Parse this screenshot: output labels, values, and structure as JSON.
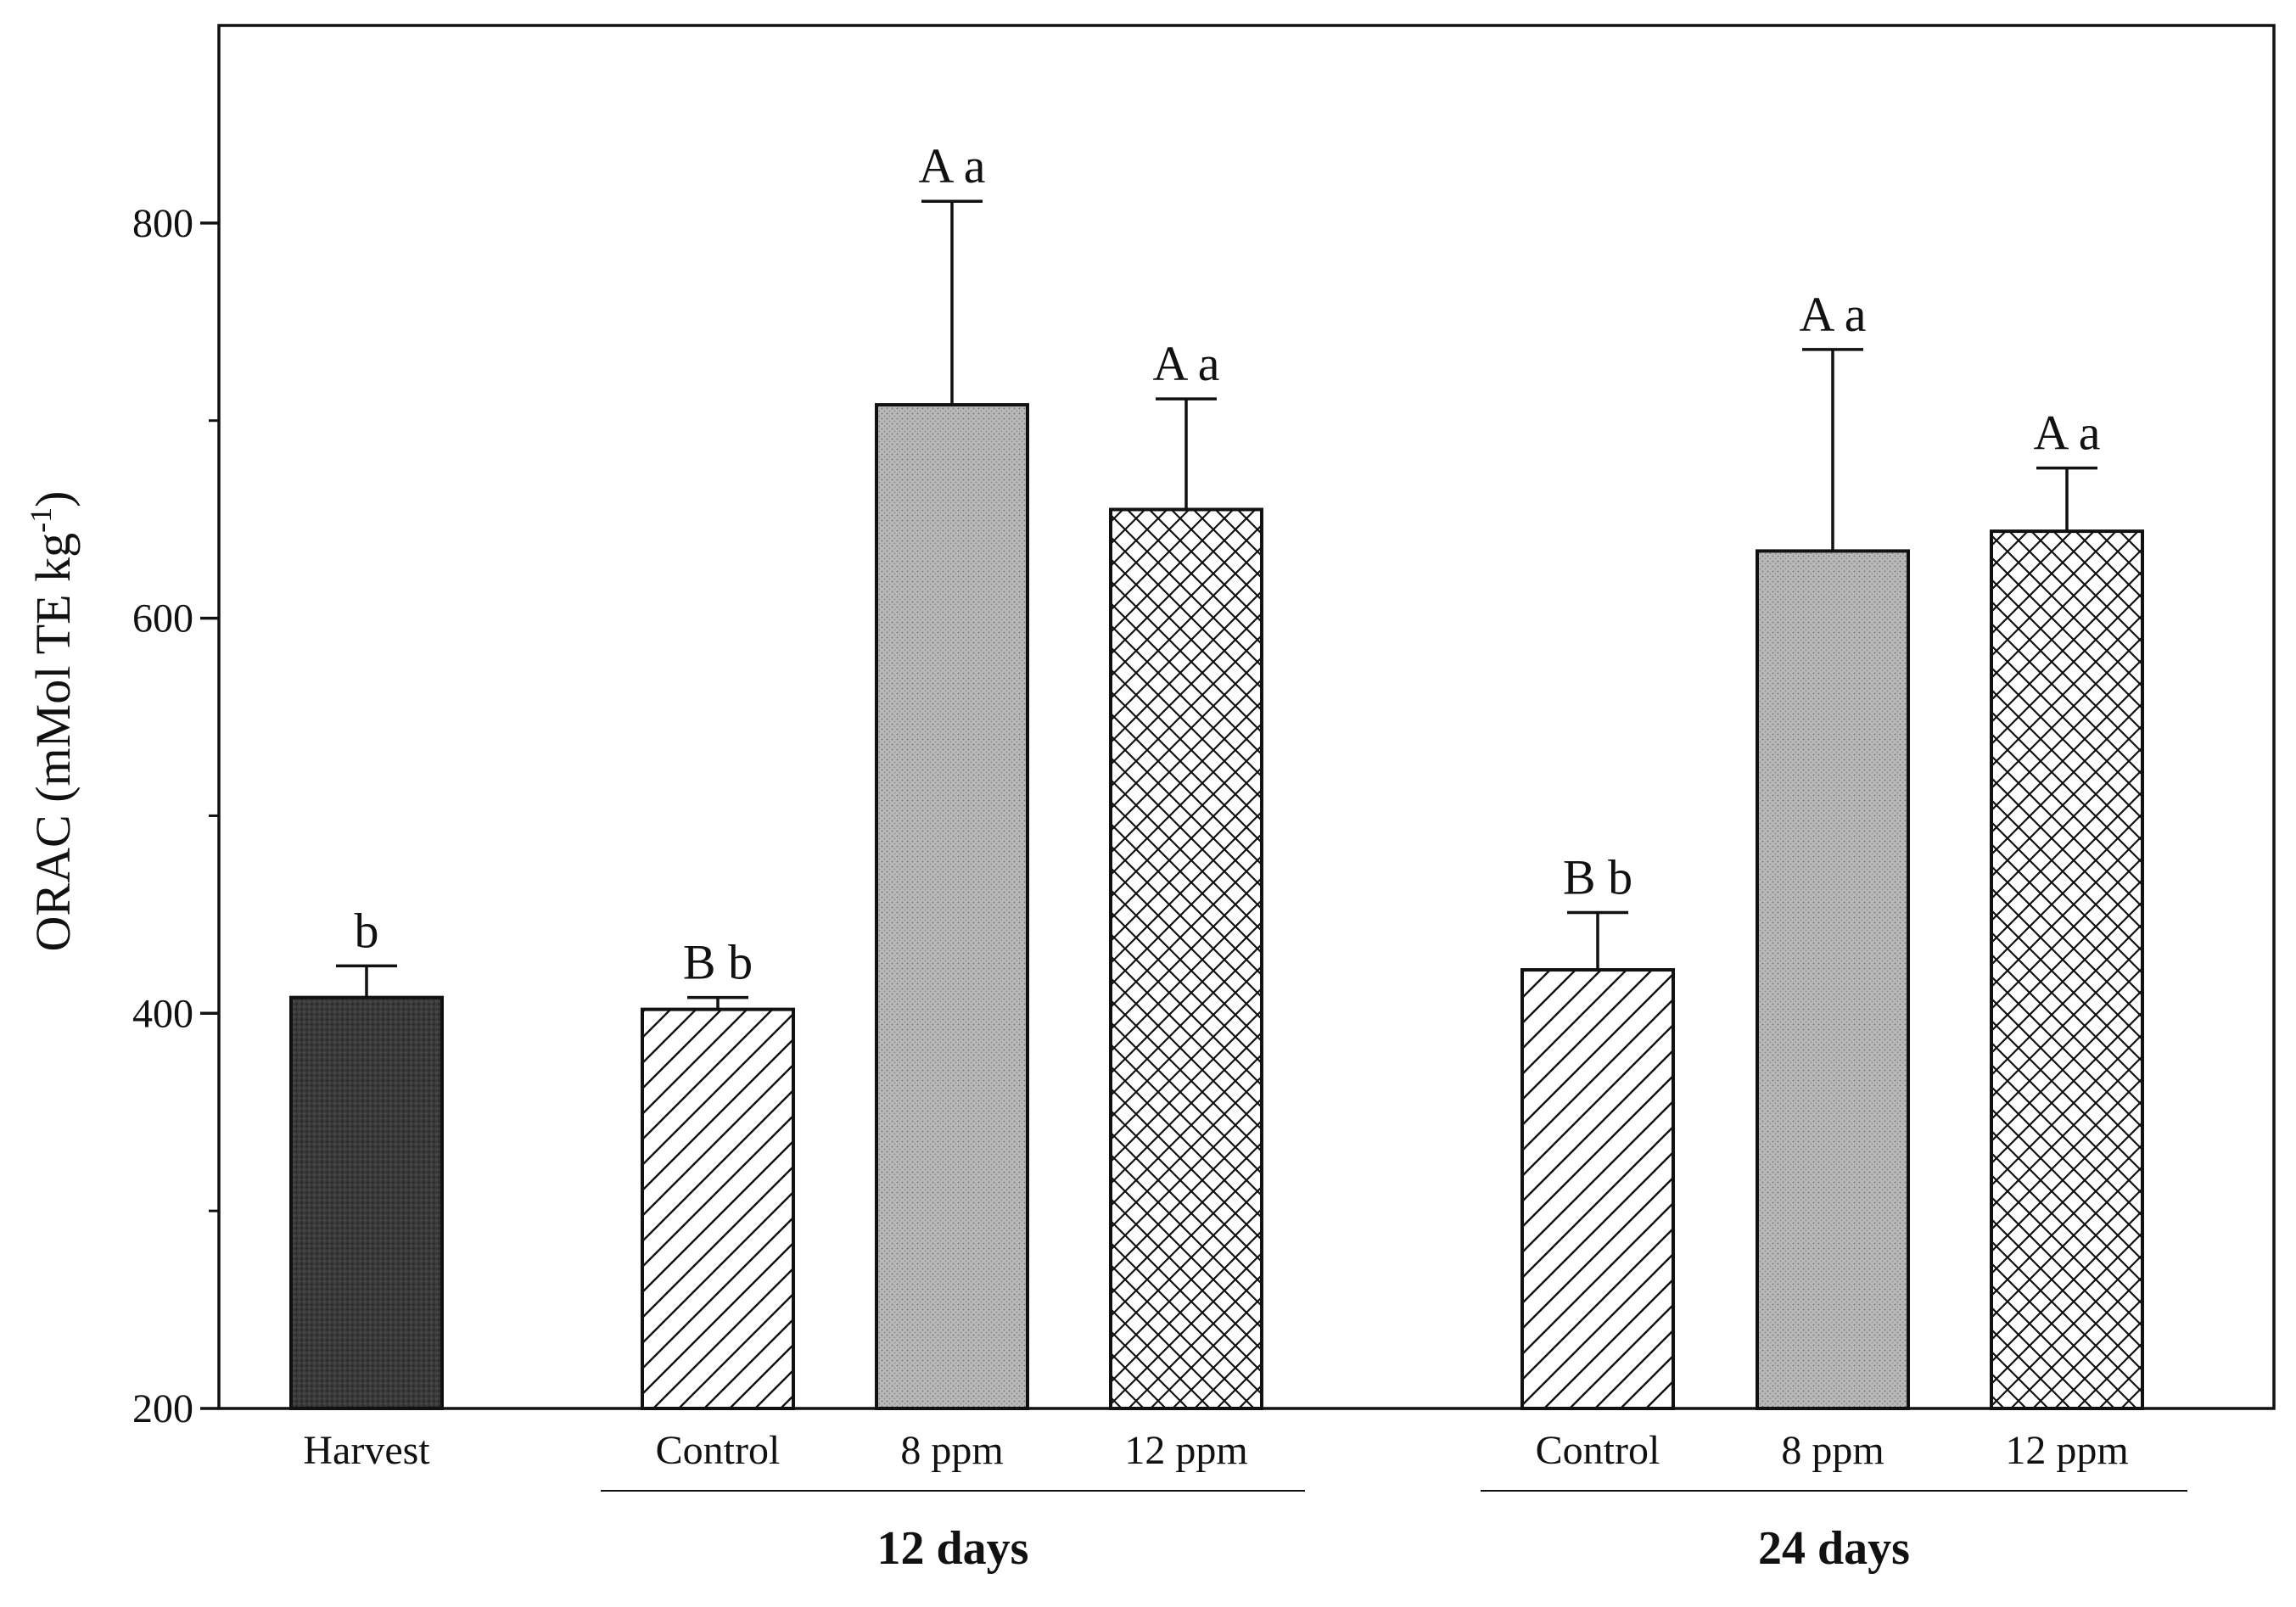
{
  "chart_data": {
    "type": "bar",
    "title": "",
    "xlabel": "",
    "ylabel": "ORAC (mMol TE kg",
    "ylabel_superscript": "-1",
    "ylabel_suffix": ")",
    "ylim": [
      200,
      900
    ],
    "yticks": [
      200,
      400,
      600,
      800
    ],
    "minor_ticks": [
      300,
      500,
      700
    ],
    "bars": [
      {
        "category": "Harvest",
        "group": "",
        "value": 408,
        "error": 16,
        "pattern": "dark",
        "sig": "b"
      },
      {
        "category": "Control",
        "group": "12 days",
        "value": 402,
        "error": 6,
        "pattern": "diagonal",
        "sig": "B   b"
      },
      {
        "category": "8 ppm",
        "group": "12 days",
        "value": 708,
        "error": 103,
        "pattern": "dotted",
        "sig": "A   a"
      },
      {
        "category": "12 ppm",
        "group": "12 days",
        "value": 655,
        "error": 56,
        "pattern": "crosshatch",
        "sig": "A   a"
      },
      {
        "category": "Control",
        "group": "24 days",
        "value": 422,
        "error": 29,
        "pattern": "diagonal",
        "sig": "B   b"
      },
      {
        "category": "8 ppm",
        "group": "24 days",
        "value": 634,
        "error": 102,
        "pattern": "dotted",
        "sig": "A   a"
      },
      {
        "category": "12 ppm",
        "group": "24 days",
        "value": 644,
        "error": 32,
        "pattern": "crosshatch",
        "sig": "A   a"
      }
    ],
    "groups": [
      "12 days",
      "24 days"
    ]
  },
  "colors": {
    "dark_bar": "#3a3a3a",
    "dotted_bar": "#b8b8b8",
    "stroke": "#111111"
  }
}
